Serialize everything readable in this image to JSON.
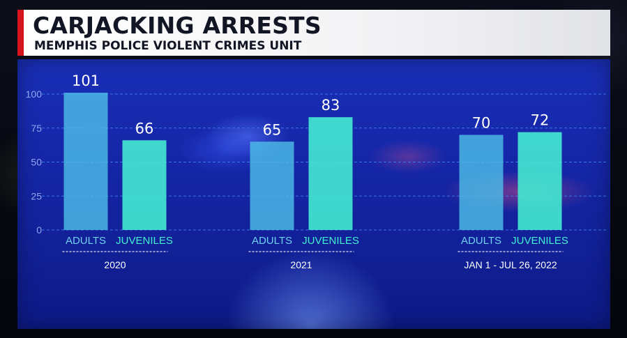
{
  "header": {
    "title": "CARJACKING ARRESTS",
    "subtitle": "MEMPHIS POLICE VIOLENT CRIMES UNIT"
  },
  "colors": {
    "adults": "#4dbde6",
    "juveniles": "#45ead2",
    "adults_label": "#6fd0f2",
    "juveniles_label": "#3ff0d2",
    "grid": "#3f7df0",
    "accent": "#d5141e"
  },
  "chart_data": {
    "type": "bar",
    "title": "",
    "xlabel": "",
    "ylabel": "",
    "ylim": [
      0,
      100
    ],
    "yticks": [
      0,
      25,
      50,
      75,
      100
    ],
    "grid": true,
    "groups": [
      "2020",
      "2021",
      "JAN 1 - JUL 26, 2022"
    ],
    "series": [
      {
        "name": "ADULTS",
        "values": [
          101,
          65,
          70
        ]
      },
      {
        "name": "JUVENILES",
        "values": [
          66,
          83,
          72
        ]
      }
    ]
  }
}
